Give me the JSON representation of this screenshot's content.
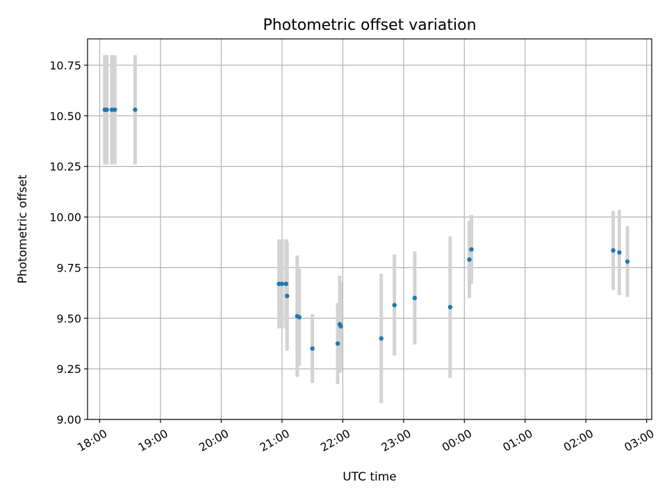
{
  "chart_data": {
    "type": "scatter",
    "title": "Photometric offset variation",
    "xlabel": "UTC time",
    "ylabel": "Photometric offset",
    "x_axis_type": "time",
    "xlim": [
      "17:48",
      "03:05"
    ],
    "ylim": [
      9.0,
      10.88
    ],
    "x_ticks": [
      "18:00",
      "19:00",
      "20:00",
      "21:00",
      "22:00",
      "23:00",
      "00:00",
      "01:00",
      "02:00",
      "03:00"
    ],
    "y_ticks": [
      "9.00",
      "9.25",
      "9.50",
      "9.75",
      "10.00",
      "10.25",
      "10.50",
      "10.75"
    ],
    "grid": true,
    "legend": "none",
    "marker_color": "#1f77b4",
    "errorbar_color": "#d3d3d3",
    "points": [
      {
        "t": "18:05",
        "y": 10.53,
        "err": 0.27
      },
      {
        "t": "18:07",
        "y": 10.53,
        "err": 0.27
      },
      {
        "t": "18:12",
        "y": 10.53,
        "err": 0.27
      },
      {
        "t": "18:15",
        "y": 10.53,
        "err": 0.27
      },
      {
        "t": "18:35",
        "y": 10.53,
        "err": 0.27
      },
      {
        "t": "20:57",
        "y": 9.67,
        "err": 0.22
      },
      {
        "t": "21:00",
        "y": 9.67,
        "err": 0.22
      },
      {
        "t": "21:04",
        "y": 9.67,
        "err": 0.22
      },
      {
        "t": "21:05",
        "y": 9.61,
        "err": 0.27
      },
      {
        "t": "21:15",
        "y": 9.51,
        "err": 0.3
      },
      {
        "t": "21:17",
        "y": 9.505,
        "err": 0.24
      },
      {
        "t": "21:30",
        "y": 9.35,
        "err": 0.17
      },
      {
        "t": "21:55",
        "y": 9.375,
        "err": 0.2
      },
      {
        "t": "21:57",
        "y": 9.47,
        "err": 0.24
      },
      {
        "t": "21:58",
        "y": 9.46,
        "err": 0.22
      },
      {
        "t": "22:38",
        "y": 9.4,
        "err": 0.32
      },
      {
        "t": "22:51",
        "y": 9.565,
        "err": 0.25
      },
      {
        "t": "23:11",
        "y": 9.6,
        "err": 0.23
      },
      {
        "t": "23:46",
        "y": 9.555,
        "err": 0.35
      },
      {
        "t": "00:05",
        "y": 9.79,
        "err": 0.19
      },
      {
        "t": "00:07",
        "y": 9.84,
        "err": 0.17
      },
      {
        "t": "02:27",
        "y": 9.835,
        "err": 0.195
      },
      {
        "t": "02:33",
        "y": 9.825,
        "err": 0.21
      },
      {
        "t": "02:41",
        "y": 9.78,
        "err": 0.175
      }
    ]
  }
}
